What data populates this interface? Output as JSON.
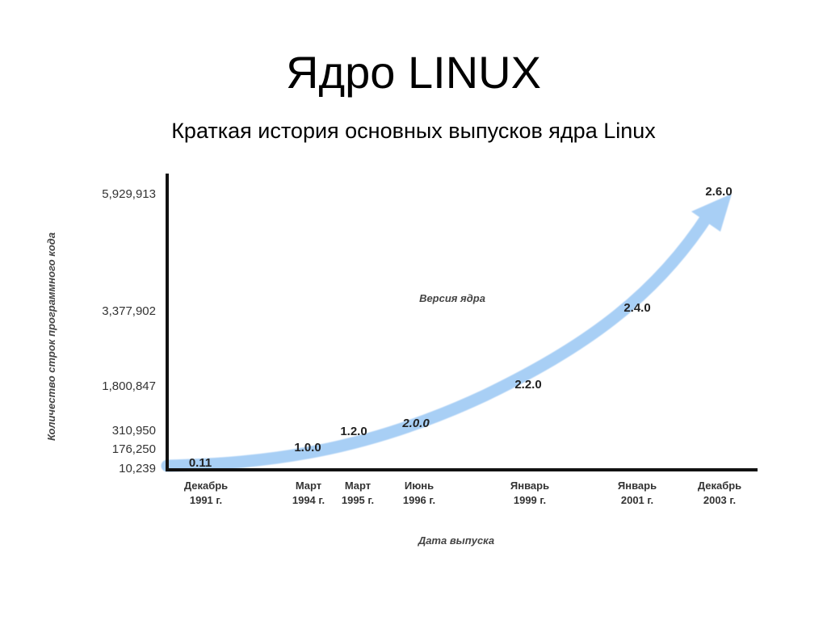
{
  "slide": {
    "title": "Ядро LINUX",
    "subtitle": "Краткая история основных выпусков ядра Linux"
  },
  "chart_data": {
    "type": "line",
    "title": "",
    "xlabel": "Дата выпуска",
    "ylabel": "Количество строк программного кода",
    "series_label": "Версия ядра",
    "series_color": "#a8cff5",
    "axis_color": "#111111",
    "x_categories": [
      [
        "Декабрь",
        "1991 г."
      ],
      [
        "Март",
        "1994 г."
      ],
      [
        "Март",
        "1995 г."
      ],
      [
        "Июнь",
        "1996 г."
      ],
      [
        "Январь",
        "1999 г."
      ],
      [
        "Январь",
        "2001 г."
      ],
      [
        "Декабрь",
        "2003 г."
      ]
    ],
    "y_ticks": [
      "10,239",
      "176,250",
      "310,950",
      "1,800,847",
      "3,377,902",
      "5,929,913"
    ],
    "points": [
      {
        "version": "0.11",
        "date": "Декабрь 1991 г.",
        "lines": 10239
      },
      {
        "version": "1.0.0",
        "date": "Март 1994 г.",
        "lines": 176250
      },
      {
        "version": "1.2.0",
        "date": "Март 1995 г.",
        "lines": 310950
      },
      {
        "version": "2.0.0",
        "date": "Июнь 1996 г.",
        "lines": null
      },
      {
        "version": "2.2.0",
        "date": "Январь 1999 г.",
        "lines": 1800847
      },
      {
        "version": "2.4.0",
        "date": "Январь 2001 г.",
        "lines": 3377902
      },
      {
        "version": "2.6.0",
        "date": "Декабрь 2003 г.",
        "lines": 5929913
      }
    ],
    "grid": false,
    "legend": "none"
  }
}
